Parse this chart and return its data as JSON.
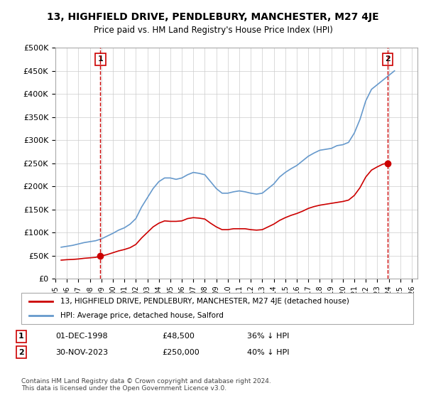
{
  "title": "13, HIGHFIELD DRIVE, PENDLEBURY, MANCHESTER, M27 4JE",
  "subtitle": "Price paid vs. HM Land Registry's House Price Index (HPI)",
  "ylabel": "",
  "ylim": [
    0,
    500000
  ],
  "yticks": [
    0,
    50000,
    100000,
    150000,
    200000,
    250000,
    300000,
    350000,
    400000,
    450000,
    500000
  ],
  "ytick_labels": [
    "£0",
    "£50K",
    "£100K",
    "£150K",
    "£200K",
    "£250K",
    "£300K",
    "£350K",
    "£400K",
    "£450K",
    "£500K"
  ],
  "xlim_start": 1995.0,
  "xlim_end": 2026.5,
  "background_color": "#ffffff",
  "plot_bg_color": "#ffffff",
  "grid_color": "#cccccc",
  "sale1_x": 1998.92,
  "sale1_y": 48500,
  "sale1_label": "1",
  "sale2_x": 2023.92,
  "sale2_y": 250000,
  "sale2_label": "2",
  "sale_color": "#cc0000",
  "hpi_color": "#6699cc",
  "legend_label_red": "13, HIGHFIELD DRIVE, PENDLEBURY, MANCHESTER, M27 4JE (detached house)",
  "legend_label_blue": "HPI: Average price, detached house, Salford",
  "table_row1": [
    "1",
    "01-DEC-1998",
    "£48,500",
    "36% ↓ HPI"
  ],
  "table_row2": [
    "2",
    "30-NOV-2023",
    "£250,000",
    "40% ↓ HPI"
  ],
  "footnote": "Contains HM Land Registry data © Crown copyright and database right 2024.\nThis data is licensed under the Open Government Licence v3.0.",
  "hpi_data": {
    "years": [
      1995.5,
      1996.0,
      1996.5,
      1997.0,
      1997.5,
      1998.0,
      1998.5,
      1999.0,
      1999.5,
      2000.0,
      2000.5,
      2001.0,
      2001.5,
      2002.0,
      2002.5,
      2003.0,
      2003.5,
      2004.0,
      2004.5,
      2005.0,
      2005.5,
      2006.0,
      2006.5,
      2007.0,
      2007.5,
      2008.0,
      2008.5,
      2009.0,
      2009.5,
      2010.0,
      2010.5,
      2011.0,
      2011.5,
      2012.0,
      2012.5,
      2013.0,
      2013.5,
      2014.0,
      2014.5,
      2015.0,
      2015.5,
      2016.0,
      2016.5,
      2017.0,
      2017.5,
      2018.0,
      2018.5,
      2019.0,
      2019.5,
      2020.0,
      2020.5,
      2021.0,
      2021.5,
      2022.0,
      2022.5,
      2023.0,
      2023.5,
      2024.0,
      2024.5
    ],
    "values": [
      68000,
      70000,
      72000,
      75000,
      78000,
      80000,
      82000,
      86000,
      92000,
      98000,
      105000,
      110000,
      118000,
      130000,
      155000,
      175000,
      195000,
      210000,
      218000,
      218000,
      215000,
      218000,
      225000,
      230000,
      228000,
      225000,
      210000,
      195000,
      185000,
      185000,
      188000,
      190000,
      188000,
      185000,
      183000,
      185000,
      195000,
      205000,
      220000,
      230000,
      238000,
      245000,
      255000,
      265000,
      272000,
      278000,
      280000,
      282000,
      288000,
      290000,
      295000,
      315000,
      345000,
      385000,
      410000,
      420000,
      430000,
      440000,
      450000
    ]
  },
  "red_line_data": {
    "years": [
      1995.5,
      1996.0,
      1996.5,
      1997.0,
      1997.5,
      1998.0,
      1998.5,
      1998.92,
      1999.0,
      1999.5,
      2000.0,
      2000.5,
      2001.0,
      2001.5,
      2002.0,
      2002.5,
      2003.0,
      2003.5,
      2004.0,
      2004.5,
      2005.0,
      2005.5,
      2006.0,
      2006.5,
      2007.0,
      2007.5,
      2008.0,
      2008.5,
      2009.0,
      2009.5,
      2010.0,
      2010.5,
      2011.0,
      2011.5,
      2012.0,
      2012.5,
      2013.0,
      2013.5,
      2014.0,
      2014.5,
      2015.0,
      2015.5,
      2016.0,
      2016.5,
      2017.0,
      2017.5,
      2018.0,
      2018.5,
      2019.0,
      2019.5,
      2020.0,
      2020.5,
      2021.0,
      2021.5,
      2022.0,
      2022.5,
      2023.0,
      2023.5,
      2023.92
    ],
    "values": [
      40000,
      41000,
      41500,
      42500,
      44000,
      45000,
      46000,
      48500,
      49000,
      52000,
      56000,
      60000,
      63000,
      67000,
      74000,
      88000,
      100000,
      112000,
      120000,
      125000,
      124000,
      124000,
      125000,
      130000,
      132000,
      131000,
      129000,
      120000,
      112000,
      106000,
      106000,
      108000,
      108000,
      108000,
      106000,
      105000,
      106000,
      112000,
      118000,
      126000,
      132000,
      137000,
      141000,
      146000,
      152000,
      156000,
      159000,
      161000,
      163000,
      165000,
      167000,
      170000,
      180000,
      197000,
      220000,
      235000,
      242000,
      248000,
      250000
    ]
  }
}
